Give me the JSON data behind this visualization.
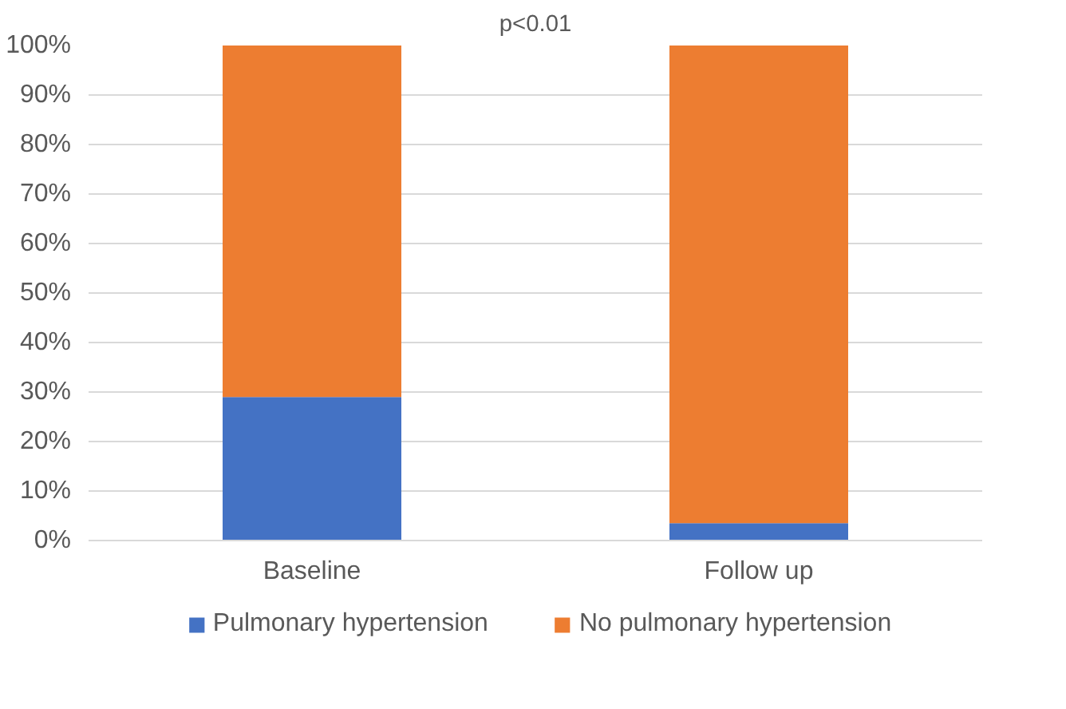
{
  "chart_data": {
    "type": "bar",
    "stacked": true,
    "title": "p<0.01",
    "categories": [
      "Baseline",
      "Follow up"
    ],
    "series": [
      {
        "name": "Pulmonary hypertension",
        "color": "#4472c4",
        "values": [
          29,
          3.5
        ]
      },
      {
        "name": "No pulmonary hypertension",
        "color": "#ed7d31",
        "values": [
          71,
          96.5
        ]
      }
    ],
    "ylim": [
      0,
      100
    ],
    "yticks": [
      {
        "value": 0,
        "label": "0%"
      },
      {
        "value": 10,
        "label": "10%"
      },
      {
        "value": 20,
        "label": "20%"
      },
      {
        "value": 30,
        "label": "30%"
      },
      {
        "value": 40,
        "label": "40%"
      },
      {
        "value": 50,
        "label": "50%"
      },
      {
        "value": 60,
        "label": "60%"
      },
      {
        "value": 70,
        "label": "70%"
      },
      {
        "value": 80,
        "label": "80%"
      },
      {
        "value": 90,
        "label": "90%"
      },
      {
        "value": 100,
        "label": "100%"
      }
    ],
    "grid": "y",
    "legend": "bottom"
  }
}
